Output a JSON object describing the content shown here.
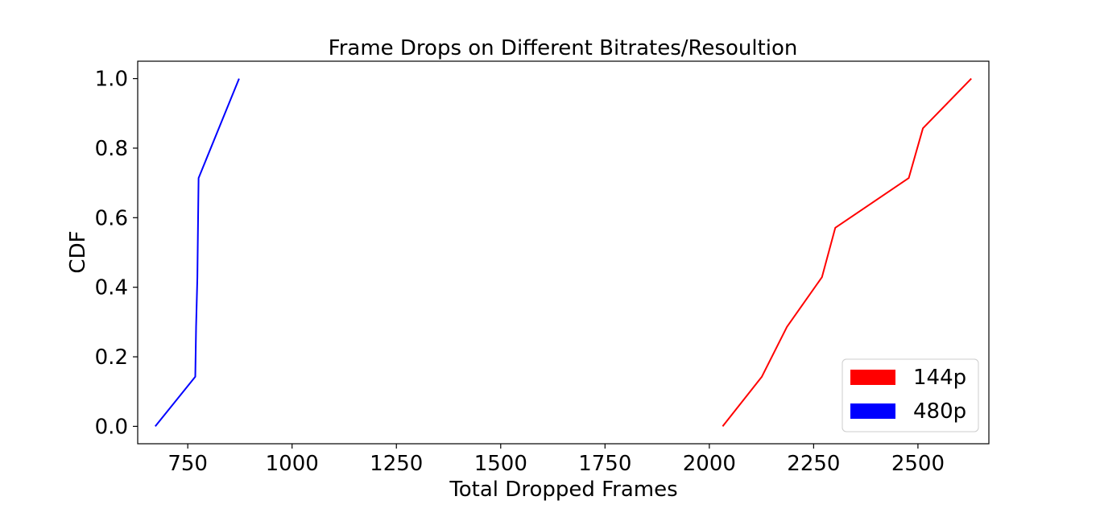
{
  "chart_data": {
    "type": "line",
    "title": "Frame Drops on Different Bitrates/Resoultion",
    "xlabel": "Total Dropped Frames",
    "ylabel": "CDF",
    "xlim": [
      630,
      2670
    ],
    "ylim": [
      -0.05,
      1.05
    ],
    "xticks": [
      750,
      1000,
      1250,
      1500,
      1750,
      2000,
      2250,
      2500
    ],
    "xtick_labels": [
      "750",
      "1000",
      "1250",
      "1500",
      "1750",
      "2000",
      "2250",
      "2500"
    ],
    "yticks": [
      0.0,
      0.2,
      0.4,
      0.6,
      0.8,
      1.0
    ],
    "ytick_labels": [
      "0.0",
      "0.2",
      "0.4",
      "0.6",
      "0.8",
      "1.0"
    ],
    "grid": false,
    "legend_position": "bottom-right",
    "series": [
      {
        "name": "144p",
        "color": "#ff0000",
        "x": [
          2032,
          2126,
          2186,
          2270,
          2302,
          2478,
          2512,
          2628
        ],
        "y": [
          0.0,
          0.143,
          0.286,
          0.429,
          0.571,
          0.714,
          0.857,
          1.0
        ]
      },
      {
        "name": "480p",
        "color": "#0000ff",
        "x": [
          672,
          768,
          770,
          773,
          776,
          873
        ],
        "y": [
          0.0,
          0.143,
          0.286,
          0.429,
          0.714,
          1.0
        ]
      }
    ]
  }
}
